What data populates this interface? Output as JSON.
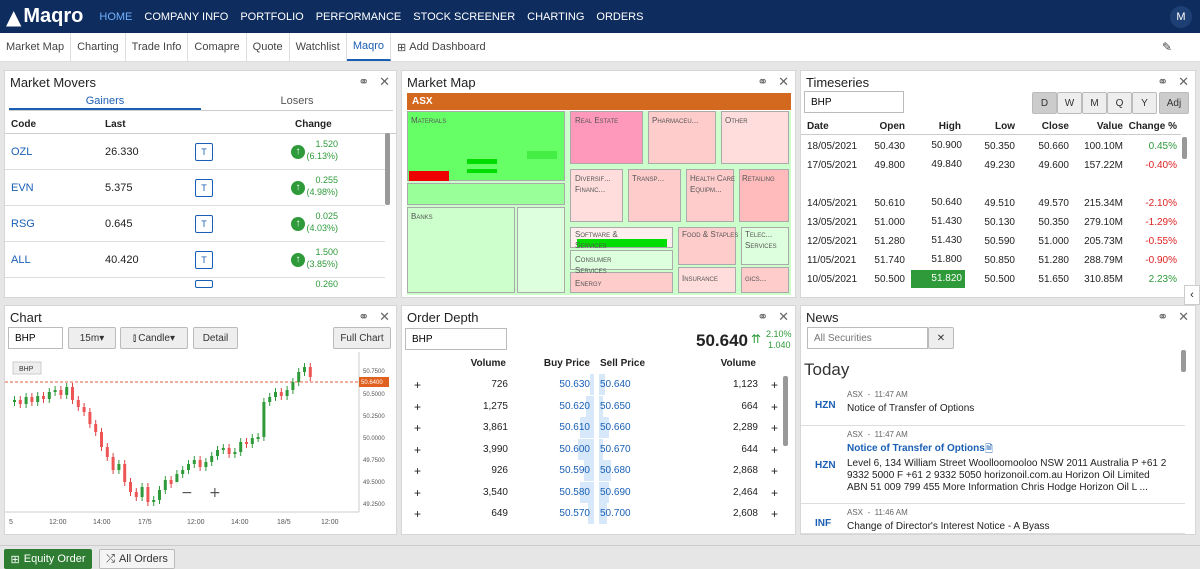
{
  "app": {
    "brand": "Maqro",
    "avatar": "M"
  },
  "nav": [
    "HOME",
    "COMPANY INFO",
    "PORTFOLIO",
    "PERFORMANCE",
    "STOCK SCREENER",
    "CHARTING",
    "ORDERS"
  ],
  "tabs": [
    "Market Map",
    "Charting",
    "Trade Info",
    "Comapre",
    "Quote",
    "Watchlist",
    "Maqro"
  ],
  "add_dashboard": "Add Dashboard",
  "movers": {
    "title": "Market Movers",
    "tab_gainers": "Gainers",
    "tab_losers": "Losers",
    "headers": [
      "Code",
      "Last",
      "Change"
    ],
    "rows": [
      {
        "code": "OZL",
        "last": "26.330",
        "t": "T",
        "chg": "1.520",
        "pct": "(6.13%)"
      },
      {
        "code": "EVN",
        "last": "5.375",
        "t": "T",
        "chg": "0.255",
        "pct": "(4.98%)"
      },
      {
        "code": "RSG",
        "last": "0.645",
        "t": "T",
        "chg": "0.025",
        "pct": "(4.03%)"
      },
      {
        "code": "ALL",
        "last": "40.420",
        "t": "T",
        "chg": "1.500",
        "pct": "(3.85%)"
      }
    ],
    "partial": "0.260"
  },
  "marketmap": {
    "title": "Market Map",
    "root": "ASX",
    "sectors": [
      "Materials",
      "Real Estate",
      "Pharmaceu...",
      "Other",
      "Diversif... Financ...",
      "Transp...",
      "Health Care Equipm...",
      "Retailing",
      "Banks",
      "Software & Services",
      "Food & Staples",
      "Telec... Services",
      "Consumer Services",
      "Energy",
      "Insurance",
      "gics..."
    ]
  },
  "timeseries": {
    "title": "Timeseries",
    "symbol": "BHP",
    "periods": [
      "D",
      "W",
      "M",
      "Q",
      "Y",
      "Adj"
    ],
    "headers": [
      "Date",
      "Open",
      "High",
      "Low",
      "Close",
      "Value",
      "Change %"
    ],
    "rows": [
      {
        "d": "18/05/2021",
        "o": "50.430",
        "h": "50.900",
        "l": "50.350",
        "c": "50.660",
        "v": "100.10M",
        "p": "0.45%",
        "up": true
      },
      {
        "d": "17/05/2021",
        "o": "49.800",
        "h": "49.840",
        "l": "49.230",
        "c": "49.600",
        "v": "157.22M",
        "p": "-0.40%",
        "up": false
      },
      {
        "d": "",
        "o": "",
        "h": "",
        "l": "",
        "c": "",
        "v": "",
        "p": "",
        "up": true
      },
      {
        "d": "14/05/2021",
        "o": "50.610",
        "h": "50.640",
        "l": "49.510",
        "c": "49.570",
        "v": "215.34M",
        "p": "-2.10%",
        "up": false
      },
      {
        "d": "13/05/2021",
        "o": "51.000",
        "h": "51.430",
        "l": "50.130",
        "c": "50.350",
        "v": "279.10M",
        "p": "-1.29%",
        "up": false
      },
      {
        "d": "12/05/2021",
        "o": "51.280",
        "h": "51.430",
        "l": "50.590",
        "c": "51.000",
        "v": "205.73M",
        "p": "-0.55%",
        "up": false
      },
      {
        "d": "11/05/2021",
        "o": "51.740",
        "h": "51.800",
        "l": "50.850",
        "c": "51.280",
        "v": "288.79M",
        "p": "-0.90%",
        "up": false
      },
      {
        "d": "10/05/2021",
        "o": "50.500",
        "h": "51.820",
        "l": "50.500",
        "c": "51.650",
        "v": "310.85M",
        "p": "2.23%",
        "up": true
      }
    ]
  },
  "chart": {
    "title": "Chart",
    "symbol": "BHP",
    "interval": "15m",
    "type": "Candle",
    "detail": "Detail",
    "full": "Full Chart",
    "badge": "BHP",
    "price_tag": "50.6400",
    "yticks": [
      "50.7500",
      "50.5000",
      "50.2500",
      "50.0000",
      "49.7500",
      "49.5000",
      "49.2500"
    ],
    "xticks": [
      "5",
      "12:00",
      "14:00",
      "17/5",
      "12:00",
      "14:00",
      "18/5",
      "12:00"
    ]
  },
  "depth": {
    "title": "Order Depth",
    "symbol": "BHP",
    "price": "50.640",
    "chg_pct": "2.10%",
    "chg": "1.040",
    "headers": [
      "Volume",
      "Buy Price",
      "Sell Price",
      "Volume"
    ],
    "rows": [
      {
        "bv": "726",
        "bp": "50.630",
        "sp": "50.640",
        "sv": "1,123"
      },
      {
        "bv": "1,275",
        "bp": "50.620",
        "sp": "50.650",
        "sv": "664"
      },
      {
        "bv": "3,861",
        "bp": "50.610",
        "sp": "50.660",
        "sv": "2,289"
      },
      {
        "bv": "3,990",
        "bp": "50.600",
        "sp": "50.670",
        "sv": "644"
      },
      {
        "bv": "926",
        "bp": "50.590",
        "sp": "50.680",
        "sv": "2,868"
      },
      {
        "bv": "3,540",
        "bp": "50.580",
        "sp": "50.690",
        "sv": "2,464"
      },
      {
        "bv": "649",
        "bp": "50.570",
        "sp": "50.700",
        "sv": "2,608"
      }
    ]
  },
  "news": {
    "title": "News",
    "placeholder": "All Securities",
    "today": "Today",
    "items": [
      {
        "code": "HZN",
        "meta": "ASX  -  11:47 AM",
        "headline": "Notice of Transfer of Options",
        "body": ""
      },
      {
        "code": "HZN",
        "meta": "ASX  -  11:47 AM",
        "headline": "Notice of Transfer of Options",
        "body": "Level 6, 134 William Street Woolloomooloo NSW 2011 Australia P +61 2 9332 5000 F +61 2 9332 5050 horizonoil.com.au Horizon Oil Limited ABN 51 009 799 455 More Information Chris Hodge Horizon Oil L ..."
      },
      {
        "code": "INF",
        "meta": "ASX  -  11:46 AM",
        "headline": "Change of Director's Interest Notice - A Byass",
        "body": ""
      }
    ]
  },
  "bottom": {
    "equity": "Equity Order",
    "all": "All Orders"
  }
}
